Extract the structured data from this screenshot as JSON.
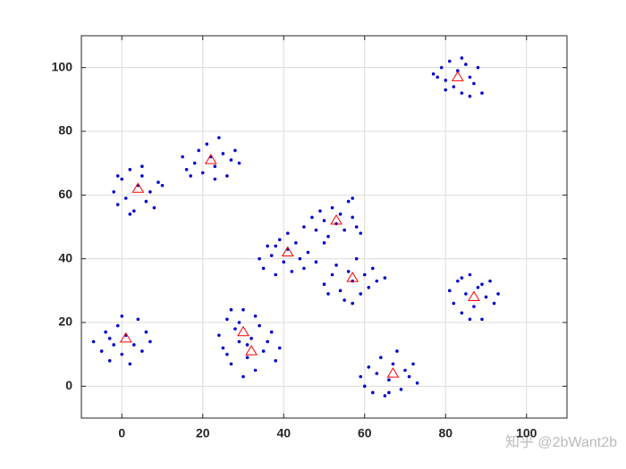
{
  "chart_data": {
    "type": "scatter",
    "xlim": [
      -10,
      110
    ],
    "ylim": [
      -10,
      110
    ],
    "xticks": [
      0,
      20,
      40,
      60,
      80,
      100
    ],
    "yticks": [
      0,
      20,
      40,
      60,
      80,
      100
    ],
    "grid": true,
    "annotation": "知乎 @2bWant2b",
    "series": [
      {
        "color": "#0000cc",
        "marker": "dot",
        "x": [
          77,
          79,
          80,
          81,
          82,
          83,
          84,
          85,
          86,
          87,
          88,
          89,
          80,
          84,
          86,
          78,
          15,
          16,
          18,
          19,
          20,
          21,
          22,
          23,
          24,
          25,
          26,
          27,
          28,
          29,
          17,
          23,
          -2,
          -1,
          0,
          1,
          2,
          3,
          4,
          5,
          6,
          7,
          8,
          9,
          10,
          2,
          5,
          -1,
          45,
          47,
          48,
          49,
          50,
          51,
          52,
          53,
          54,
          55,
          56,
          57,
          58,
          59,
          57,
          50,
          34,
          35,
          36,
          37,
          38,
          39,
          40,
          41,
          42,
          43,
          44,
          45,
          46,
          48,
          41,
          38,
          50,
          51,
          52,
          53,
          54,
          55,
          56,
          57,
          58,
          59,
          60,
          61,
          62,
          63,
          65,
          57,
          81,
          82,
          83,
          84,
          85,
          86,
          87,
          88,
          89,
          90,
          91,
          92,
          93,
          86,
          84,
          89,
          -7,
          -5,
          -4,
          -3,
          -2,
          -1,
          0,
          1,
          2,
          3,
          4,
          5,
          6,
          7,
          0,
          -3,
          24,
          25,
          26,
          27,
          28,
          29,
          30,
          31,
          32,
          33,
          34,
          35,
          36,
          38,
          39,
          27,
          30,
          33,
          26,
          37,
          29,
          31,
          59,
          60,
          61,
          62,
          63,
          64,
          65,
          66,
          67,
          68,
          69,
          70,
          71,
          72,
          73,
          66
        ],
        "y": [
          98,
          100,
          96,
          102,
          94,
          99,
          92,
          101,
          97,
          95,
          100,
          92,
          93,
          103,
          91,
          97,
          72,
          68,
          70,
          74,
          67,
          76,
          72,
          69,
          78,
          73,
          66,
          71,
          74,
          70,
          66,
          65,
          61,
          57,
          65,
          59,
          68,
          55,
          63,
          66,
          58,
          61,
          56,
          64,
          63,
          54,
          69,
          66,
          50,
          53,
          49,
          55,
          52,
          47,
          56,
          51,
          54,
          49,
          58,
          53,
          50,
          48,
          59,
          45,
          40,
          37,
          44,
          41,
          35,
          46,
          39,
          43,
          36,
          45,
          40,
          37,
          42,
          39,
          48,
          44,
          32,
          29,
          35,
          38,
          30,
          27,
          36,
          33,
          40,
          29,
          35,
          31,
          37,
          33,
          34,
          26,
          30,
          26,
          33,
          23,
          29,
          35,
          25,
          31,
          21,
          28,
          33,
          26,
          29,
          21,
          34,
          32,
          14,
          11,
          17,
          8,
          13,
          19,
          10,
          16,
          7,
          13,
          21,
          11,
          17,
          14,
          22,
          15,
          16,
          12,
          21,
          7,
          18,
          14,
          24,
          9,
          15,
          5,
          19,
          11,
          14,
          8,
          12,
          24,
          3,
          22,
          10,
          17,
          20,
          13,
          3,
          0,
          6,
          -2,
          4,
          9,
          -3,
          2,
          7,
          11,
          -1,
          5,
          3,
          7,
          1,
          -2
        ]
      },
      {
        "color": "#ff0000",
        "marker": "triangle",
        "x": [
          83,
          22,
          4,
          53,
          41,
          57,
          87,
          1,
          30,
          32,
          67
        ],
        "y": [
          97,
          71,
          62,
          52,
          42,
          34,
          28,
          15,
          17,
          11,
          4
        ]
      }
    ]
  }
}
